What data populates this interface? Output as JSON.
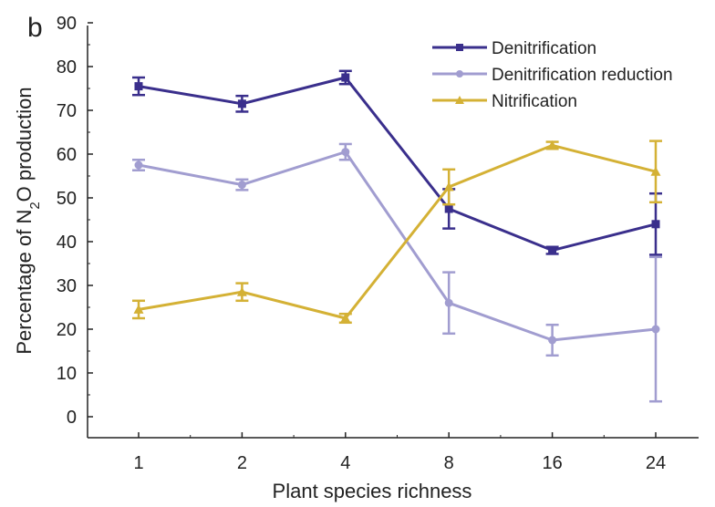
{
  "chart_data": {
    "type": "line",
    "panel_label": "b",
    "title": "",
    "xlabel": "Plant species richness",
    "ylabel_parts": [
      "Percentage of N",
      "2",
      "O production"
    ],
    "categories": [
      "1",
      "2",
      "4",
      "8",
      "16",
      "24"
    ],
    "ylim": [
      0,
      90
    ],
    "yticks": [
      0,
      10,
      20,
      30,
      40,
      50,
      60,
      70,
      80,
      90
    ],
    "grid": false,
    "legend_position": "top-right",
    "series": [
      {
        "name": "Denitrification",
        "color": "#3a2f8c",
        "marker": "square",
        "values": [
          75.5,
          71.5,
          77.5,
          47.5,
          38.0,
          44.0
        ],
        "errors": [
          2.0,
          1.8,
          1.5,
          4.5,
          0.8,
          7.0
        ]
      },
      {
        "name": "Denitrification reduction",
        "color": "#a19dd0",
        "marker": "circle",
        "values": [
          57.5,
          53.0,
          60.5,
          26.0,
          17.5,
          20.0
        ],
        "errors": [
          1.2,
          1.2,
          1.8,
          7.0,
          3.5,
          16.5
        ]
      },
      {
        "name": "Nitrification",
        "color": "#d4b135",
        "marker": "triangle",
        "values": [
          24.5,
          28.5,
          22.5,
          52.5,
          62.0,
          56.0
        ],
        "errors": [
          2.0,
          2.0,
          1.0,
          4.0,
          0.8,
          7.0
        ]
      }
    ]
  }
}
